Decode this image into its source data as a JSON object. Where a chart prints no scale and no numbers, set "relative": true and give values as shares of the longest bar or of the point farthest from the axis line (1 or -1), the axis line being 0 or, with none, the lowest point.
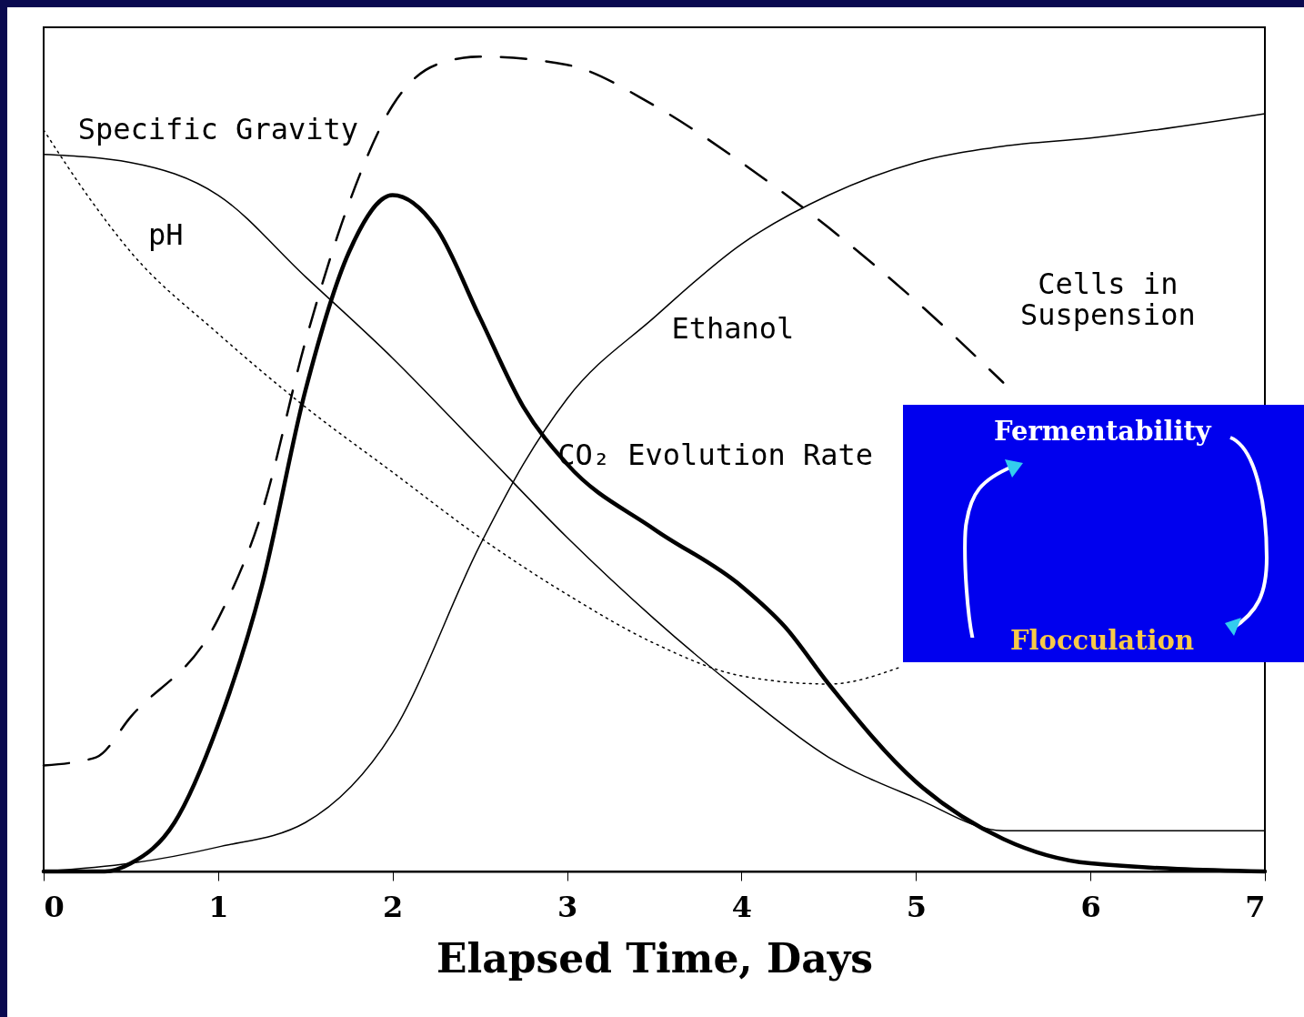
{
  "chart_data": {
    "type": "line",
    "xlabel": "Elapsed Time, Days",
    "xlim": [
      0,
      7
    ],
    "xticks": [
      0,
      1,
      2,
      3,
      4,
      5,
      6,
      7
    ],
    "relative": true,
    "grid": false,
    "marker": "none",
    "annotations": [
      "Fermentability",
      "Flocculation"
    ],
    "series": [
      {
        "name": "Specific Gravity",
        "color": "#000000",
        "line_style": "solid",
        "x": [
          0,
          0.5,
          1,
          1.5,
          2,
          2.5,
          3,
          3.5,
          4,
          4.5,
          5,
          5.5,
          6,
          7
        ],
        "values": [
          0.88,
          0.87,
          0.83,
          0.73,
          0.63,
          0.52,
          0.41,
          0.31,
          0.22,
          0.14,
          0.09,
          0.05,
          0.05,
          0.05
        ]
      },
      {
        "name": "pH",
        "color": "#000000",
        "line_style": "dotted",
        "x": [
          0,
          0.25,
          0.5,
          1,
          1.5,
          2,
          2.5,
          3,
          3.5,
          4,
          4.5,
          4.9
        ],
        "values": [
          0.91,
          0.83,
          0.76,
          0.66,
          0.57,
          0.49,
          0.41,
          0.34,
          0.28,
          0.24,
          0.23,
          0.25
        ]
      },
      {
        "name": "Cells in Suspension",
        "color": "#000000",
        "line_style": "dashed",
        "x": [
          0,
          0.3,
          0.5,
          1,
          1.25,
          1.5,
          1.75,
          2,
          2.25,
          2.5,
          3,
          3.5,
          4,
          4.5,
          5,
          5.5
        ],
        "values": [
          0.13,
          0.14,
          0.19,
          0.31,
          0.44,
          0.65,
          0.82,
          0.94,
          0.99,
          1,
          0.99,
          0.94,
          0.87,
          0.79,
          0.7,
          0.6
        ]
      },
      {
        "name": "Ethanol",
        "color": "#000000",
        "line_style": "solid",
        "x": [
          0,
          0.5,
          1,
          1.5,
          2,
          2.5,
          2.75,
          3,
          3.5,
          4,
          4.5,
          5,
          5.5,
          6,
          7
        ],
        "values": [
          0,
          0.01,
          0.03,
          0.06,
          0.17,
          0.4,
          0.5,
          0.58,
          0.68,
          0.77,
          0.83,
          0.87,
          0.89,
          0.9,
          0.93
        ]
      },
      {
        "name": "CO₂ Evolution Rate",
        "color": "#000000",
        "line_style": "solid",
        "x": [
          0,
          0.35,
          0.5,
          0.75,
          1,
          1.25,
          1.5,
          1.75,
          2,
          2.25,
          2.5,
          2.75,
          3,
          3.5,
          4,
          4.25,
          4.5,
          5,
          5.5,
          6,
          7
        ],
        "values": [
          0,
          0,
          0.01,
          0.06,
          0.18,
          0.35,
          0.59,
          0.76,
          0.83,
          0.79,
          0.68,
          0.57,
          0.5,
          0.42,
          0.35,
          0.3,
          0.23,
          0.11,
          0.04,
          0.01,
          0
        ]
      }
    ]
  }
}
